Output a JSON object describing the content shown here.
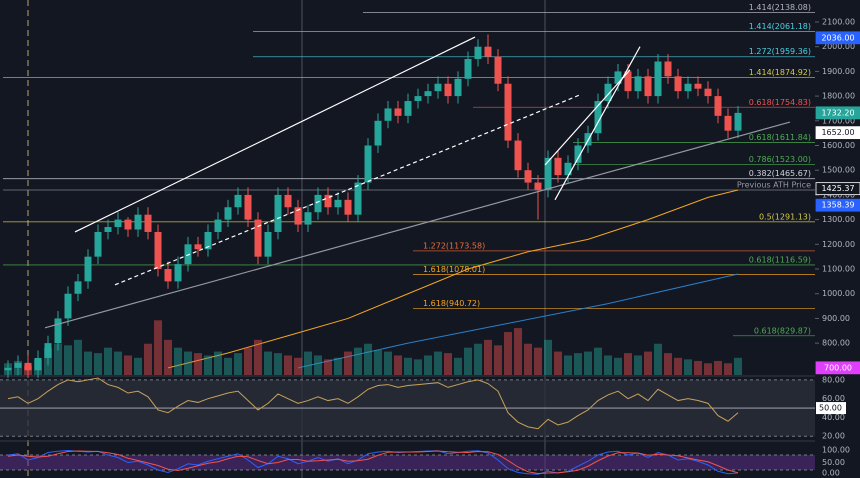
{
  "chart_data": {
    "type": "candlestick",
    "up_color": "#26a69a",
    "down_color": "#ef5350",
    "open": [
      690,
      700,
      720,
      690,
      740,
      800,
      900,
      1000,
      1050,
      1150,
      1250,
      1270,
      1300,
      1260,
      1320,
      1250,
      1100,
      1050,
      1120,
      1200,
      1180,
      1250,
      1300,
      1350,
      1400,
      1300,
      1150,
      1250,
      1400,
      1350,
      1280,
      1330,
      1400,
      1350,
      1380,
      1320,
      1450,
      1600,
      1700,
      1750,
      1720,
      1780,
      1800,
      1820,
      1850,
      1800,
      1870,
      1950,
      2000,
      1960,
      1850,
      1620,
      1500,
      1450,
      1420,
      1550,
      1480,
      1530,
      1600,
      1650,
      1780,
      1850,
      1900,
      1820,
      1880,
      1800,
      1940,
      1880,
      1820,
      1850,
      1830,
      1800,
      1720,
      1660
    ],
    "high": [
      730,
      750,
      750,
      770,
      830,
      930,
      1030,
      1080,
      1180,
      1280,
      1300,
      1330,
      1310,
      1350,
      1350,
      1280,
      1130,
      1150,
      1230,
      1230,
      1280,
      1330,
      1380,
      1430,
      1430,
      1330,
      1280,
      1430,
      1430,
      1380,
      1360,
      1430,
      1430,
      1410,
      1410,
      1480,
      1630,
      1730,
      1780,
      1780,
      1810,
      1830,
      1850,
      1880,
      1880,
      1900,
      1980,
      2030,
      2050,
      1990,
      1880,
      1650,
      1530,
      1480,
      1580,
      1580,
      1560,
      1630,
      1680,
      1810,
      1880,
      1930,
      1930,
      1910,
      1910,
      1970,
      1970,
      1910,
      1880,
      1880,
      1860,
      1830,
      1750,
      1760
    ],
    "low": [
      660,
      670,
      660,
      660,
      710,
      770,
      870,
      970,
      1020,
      1120,
      1220,
      1240,
      1230,
      1230,
      1220,
      1070,
      1020,
      1020,
      1090,
      1150,
      1150,
      1220,
      1270,
      1320,
      1270,
      1120,
      1120,
      1220,
      1320,
      1250,
      1250,
      1300,
      1320,
      1320,
      1290,
      1290,
      1420,
      1570,
      1670,
      1690,
      1690,
      1750,
      1770,
      1790,
      1770,
      1770,
      1840,
      1920,
      1930,
      1820,
      1590,
      1470,
      1420,
      1300,
      1390,
      1450,
      1450,
      1500,
      1570,
      1620,
      1750,
      1820,
      1790,
      1790,
      1770,
      1770,
      1850,
      1790,
      1790,
      1800,
      1770,
      1690,
      1630,
      1630
    ],
    "close": [
      700,
      720,
      690,
      740,
      800,
      900,
      1000,
      1050,
      1150,
      1250,
      1270,
      1300,
      1260,
      1320,
      1250,
      1100,
      1050,
      1120,
      1200,
      1180,
      1250,
      1300,
      1350,
      1400,
      1300,
      1150,
      1250,
      1400,
      1350,
      1280,
      1330,
      1400,
      1350,
      1380,
      1320,
      1450,
      1600,
      1700,
      1750,
      1720,
      1780,
      1800,
      1820,
      1850,
      1800,
      1870,
      1950,
      2000,
      1960,
      1850,
      1620,
      1500,
      1450,
      1420,
      1550,
      1480,
      1530,
      1600,
      1650,
      1780,
      1850,
      1900,
      1820,
      1880,
      1800,
      1940,
      1880,
      1820,
      1850,
      1830,
      1800,
      1720,
      1660,
      1732
    ],
    "volume": [
      15,
      18,
      12,
      20,
      35,
      40,
      38,
      45,
      30,
      28,
      35,
      30,
      25,
      22,
      40,
      70,
      45,
      35,
      30,
      28,
      25,
      30,
      22,
      28,
      35,
      45,
      30,
      28,
      25,
      22,
      30,
      25,
      20,
      22,
      30,
      35,
      40,
      32,
      30,
      25,
      22,
      20,
      25,
      30,
      28,
      22,
      35,
      40,
      45,
      38,
      55,
      60,
      40,
      35,
      45,
      30,
      25,
      28,
      30,
      35,
      25,
      22,
      28,
      25,
      30,
      40,
      28,
      22,
      20,
      18,
      15,
      18,
      15,
      22
    ],
    "volume_ylim": [
      0,
      480
    ],
    "ylim": [
      671,
      2189
    ],
    "yticks": [
      {
        "value": 2100,
        "label": "2100.00"
      },
      {
        "value": 2000,
        "label": "2000.00"
      },
      {
        "value": 1900,
        "label": "1900.00"
      },
      {
        "value": 1800,
        "label": "1800.00"
      },
      {
        "value": 1700,
        "label": "1700.00"
      },
      {
        "value": 1600,
        "label": "1600.00"
      },
      {
        "value": 1500,
        "label": "1500.00"
      },
      {
        "value": 1400,
        "label": "1400.00"
      },
      {
        "value": 1300,
        "label": "1300.00"
      },
      {
        "value": 1200,
        "label": "1200.00"
      },
      {
        "value": 1100,
        "label": "1100.00"
      },
      {
        "value": 1000,
        "label": "1000.00"
      },
      {
        "value": 900,
        "label": "900.00"
      },
      {
        "value": 800,
        "label": "800.00"
      }
    ],
    "moving_averages": [
      {
        "color": "#f5a623",
        "x": [
          16,
          22,
          28,
          34,
          40,
          46,
          52,
          58,
          64,
          70,
          73
        ],
        "values": [
          700,
          760,
          830,
          900,
          1000,
          1100,
          1170,
          1220,
          1300,
          1390,
          1420
        ]
      },
      {
        "color": "#2a7fc9",
        "x": [
          29,
          40,
          50,
          60,
          73
        ],
        "values": [
          700,
          800,
          880,
          960,
          1080
        ]
      }
    ],
    "trendlines": [
      {
        "color": "#ffffff",
        "dashed": false,
        "x": [
          6.7,
          46.7
        ],
        "values": [
          1250,
          2039
        ]
      },
      {
        "color": "#ffffff",
        "dashed": true,
        "x": [
          10.7,
          57.2
        ],
        "values": [
          1036,
          1805
        ]
      },
      {
        "color": "#9598a1",
        "dashed": false,
        "x": [
          3.7,
          78.2
        ],
        "values": [
          862,
          1695
        ]
      },
      {
        "color": "#ffffff",
        "dashed": false,
        "x": [
          54.7,
          63.2
        ],
        "values": [
          1380,
          2000
        ]
      },
      {
        "color": "#ffffff",
        "dashed": false,
        "x": [
          53.7,
          62.2
        ],
        "values": [
          1521,
          1906
        ]
      }
    ],
    "levels": [
      {
        "value": 2138.08,
        "label": "1.414(2138.08)",
        "color": "#b2b5be",
        "from": 36,
        "label_at": "end"
      },
      {
        "value": 2061.18,
        "label": "1.414(2061.18)",
        "color": "#4dd0e1",
        "from": 25,
        "label_at": "end"
      },
      {
        "value": 1959.36,
        "label": "1.272(1959.36)",
        "color": "#4dd0e1",
        "from": 25,
        "label_at": "end"
      },
      {
        "value": 1874.92,
        "label": "1.414(1874.92)",
        "color": "#d4c94a",
        "from": 0,
        "label_at": "end"
      },
      {
        "value": 1754.83,
        "label": "0.618(1754.83)",
        "color": "#ef5350",
        "from": 47,
        "label_at": "end"
      },
      {
        "value": 1611.84,
        "label": "0.618(1611.84)",
        "color": "#4caf50",
        "from": 57,
        "label_at": "end"
      },
      {
        "value": 1523.0,
        "label": "0.786(1523.00)",
        "color": "#4caf50",
        "from": 57,
        "label_at": "end"
      },
      {
        "value": 1465.67,
        "label": "0.382(1465.67)",
        "color": "#d1d4dc",
        "from": 0,
        "label_at": "end"
      },
      {
        "value": 1420,
        "label": "Previous ATH Price",
        "color": "#9598a1",
        "from": 0,
        "label_at": "end"
      },
      {
        "value": 1291.13,
        "label": "0.5(1291.13)",
        "color": "#d4c94a",
        "from": 0,
        "label_at": "end"
      },
      {
        "value": 1173.58,
        "label": "1.272(1173.58)",
        "color": "#ef6c3a",
        "from": 41,
        "label_at": "start"
      },
      {
        "value": 1116.59,
        "label": "0.618(1116.59)",
        "color": "#4caf50",
        "from": 0,
        "label_at": "end"
      },
      {
        "value": 1078.01,
        "label": "1.618(1078.01)",
        "color": "#f5a623",
        "from": 41,
        "label_at": "start"
      },
      {
        "value": 940.72,
        "label": "1.618(940.72)",
        "color": "#f5a623",
        "from": 41,
        "label_at": "start"
      },
      {
        "value": 829.87,
        "label": "0.618(829.87)",
        "color": "#4caf50",
        "from": 73,
        "label_at": "end"
      }
    ],
    "price_labels": [
      {
        "value": 2036.0,
        "label": "2036.00",
        "color": "#2962ff",
        "text_color": "#ffffff"
      },
      {
        "value": 1732.2,
        "label": "1732.20",
        "color": "#26a69a",
        "text_color": "#ffffff"
      },
      {
        "value": 1652.0,
        "label": "1652.00",
        "color": "#ffffff",
        "text_color": "#131722"
      },
      {
        "value": 1425.37,
        "label": "1425.37",
        "color": "#131722",
        "text_color": "#ffffff"
      },
      {
        "value": 1358.39,
        "label": "1358.39",
        "color": "#2962ff",
        "text_color": "#ffffff"
      },
      {
        "value": 700.0,
        "label": "700.00",
        "color": "#e040fb",
        "text_color": "#ffffff"
      }
    ],
    "rsi": {
      "color": "#c8a25a",
      "values": [
        60,
        62,
        55,
        60,
        68,
        75,
        80,
        78,
        80,
        82,
        75,
        72,
        66,
        68,
        62,
        48,
        45,
        52,
        58,
        56,
        60,
        63,
        66,
        68,
        58,
        48,
        55,
        65,
        60,
        55,
        58,
        62,
        58,
        60,
        55,
        62,
        70,
        74,
        75,
        72,
        74,
        75,
        76,
        77,
        72,
        75,
        78,
        80,
        76,
        68,
        45,
        35,
        30,
        28,
        38,
        32,
        35,
        42,
        48,
        58,
        64,
        68,
        60,
        65,
        58,
        70,
        64,
        58,
        60,
        58,
        55,
        42,
        36,
        45
      ],
      "ylim": [
        16,
        82
      ],
      "yticks": [
        {
          "value": 80,
          "label": "80.00"
        },
        {
          "value": 60,
          "label": "60.00"
        },
        {
          "value": 40,
          "label": "40.00"
        },
        {
          "value": 20,
          "label": "20.00"
        }
      ],
      "band": [
        80,
        20
      ],
      "mid": {
        "value": 50,
        "label": "50.00"
      }
    },
    "stoch": {
      "series": [
        {
          "color": "#2962ff",
          "values": [
            80,
            85,
            60,
            70,
            90,
            95,
            98,
            95,
            92,
            95,
            80,
            70,
            50,
            55,
            40,
            20,
            10,
            25,
            45,
            40,
            55,
            65,
            75,
            85,
            60,
            30,
            45,
            75,
            65,
            45,
            55,
            70,
            55,
            65,
            45,
            60,
            85,
            92,
            95,
            90,
            92,
            94,
            96,
            97,
            85,
            90,
            95,
            97,
            88,
            60,
            25,
            10,
            5,
            3,
            15,
            8,
            15,
            35,
            55,
            80,
            92,
            95,
            80,
            88,
            70,
            90,
            80,
            60,
            65,
            55,
            40,
            15,
            5,
            8
          ]
        },
        {
          "color": "#ef5350",
          "values": [
            75,
            80,
            75,
            72,
            75,
            85,
            94,
            96,
            95,
            94,
            89,
            82,
            67,
            58,
            48,
            38,
            23,
            18,
            27,
            37,
            47,
            53,
            65,
            75,
            73,
            58,
            45,
            50,
            62,
            62,
            55,
            57,
            60,
            63,
            55,
            57,
            63,
            79,
            91,
            92,
            92,
            92,
            94,
            96,
            93,
            91,
            90,
            94,
            93,
            82,
            58,
            32,
            13,
            6,
            8,
            9,
            13,
            19,
            35,
            57,
            76,
            89,
            89,
            88,
            79,
            83,
            80,
            77,
            68,
            60,
            53,
            37,
            20,
            9
          ]
        }
      ],
      "ylim": [
        -12,
        132
      ],
      "yticks": [
        {
          "value": 100,
          "label": "100.00"
        },
        {
          "value": 50,
          "label": "50.00"
        },
        {
          "value": 0,
          "label": "0.00"
        }
      ],
      "band": [
        80,
        20
      ]
    }
  }
}
